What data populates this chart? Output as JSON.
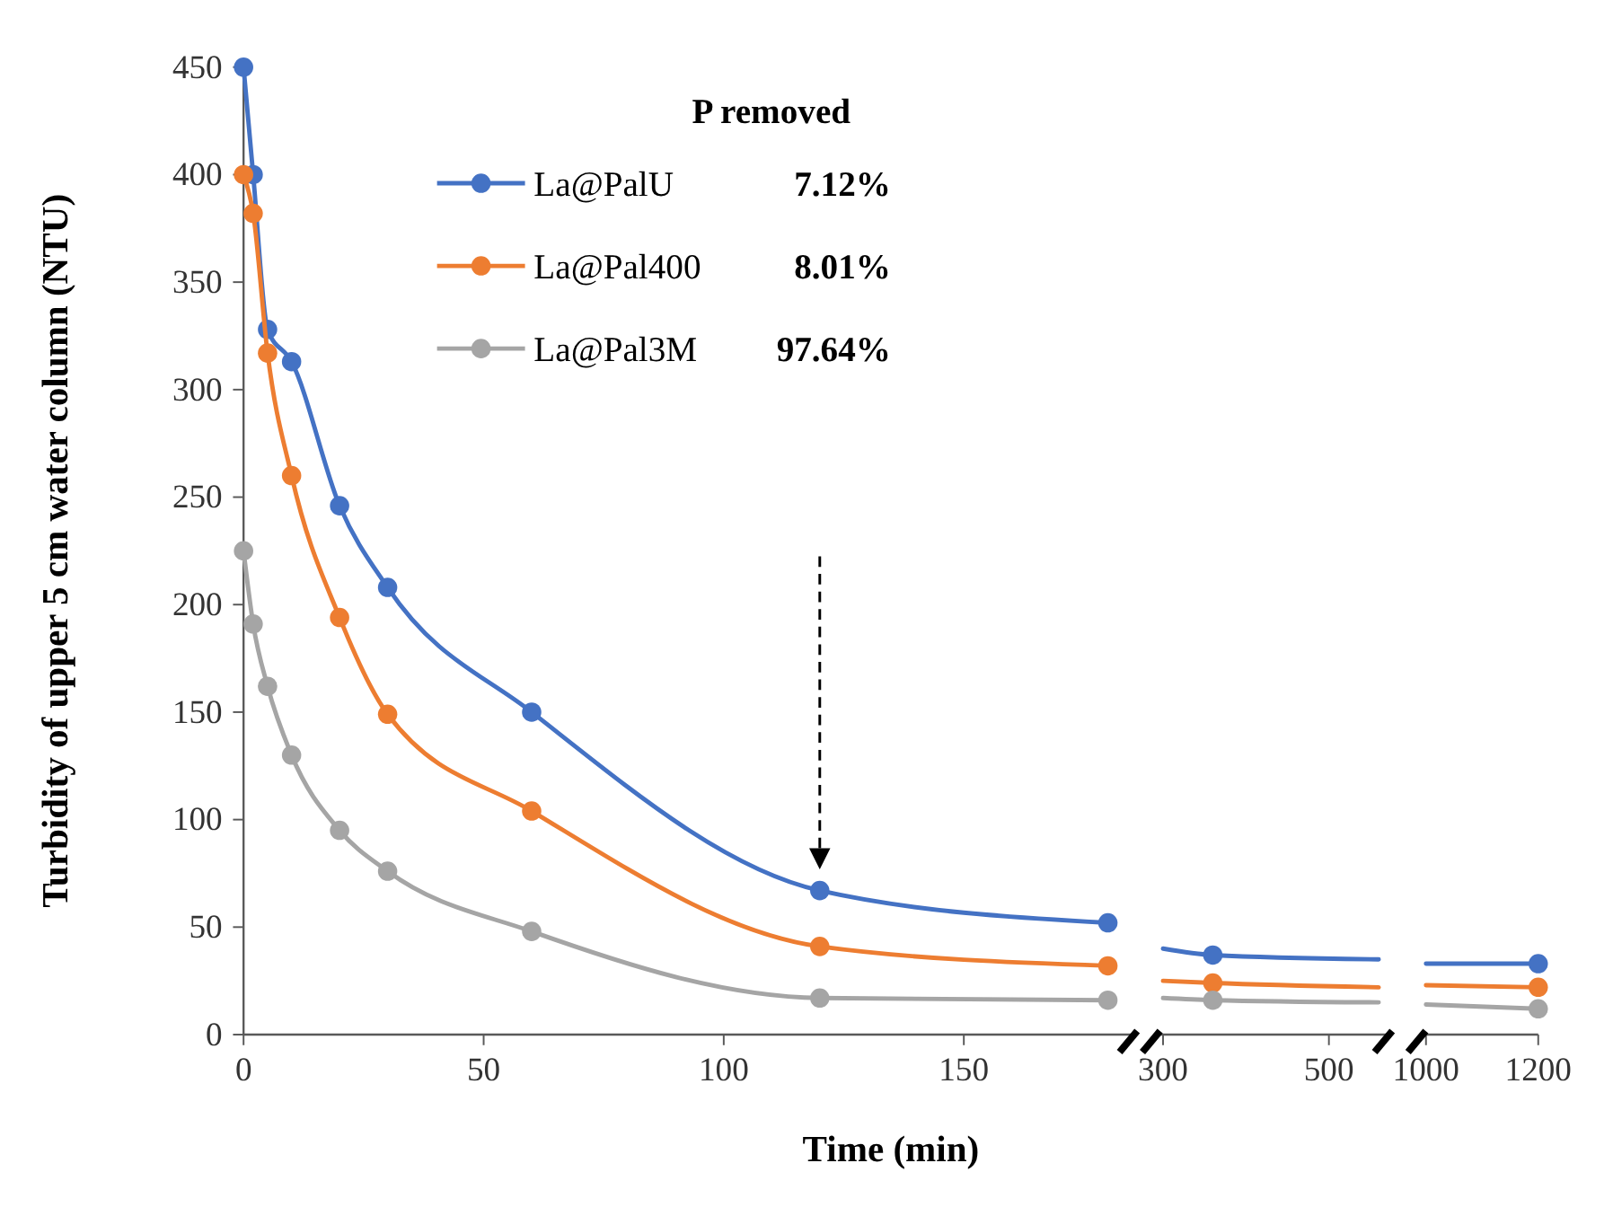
{
  "chart_data": [
    {
      "type": "line",
      "xlabel": "Time (min)",
      "ylabel": "Turbidity of upper 5 cm water column (NTU)",
      "legend": "top",
      "legend_title": "P removed",
      "annotations": [
        "7.12%",
        "8.01%",
        "97.64%"
      ],
      "marker": "circle",
      "xlim": [
        0,
        185
      ],
      "xticks": [
        0,
        50,
        100,
        150
      ],
      "ylim": [
        0,
        450
      ],
      "yticks": [
        0,
        50,
        100,
        150,
        200,
        250,
        300,
        350,
        400,
        450
      ],
      "x": [
        0,
        2,
        5,
        10,
        20,
        30,
        60,
        120,
        180
      ],
      "series": [
        {
          "name": "La@PalU",
          "color": "#4472c4",
          "values": [
            450,
            400,
            328,
            313,
            246,
            208,
            150,
            67,
            52
          ]
        },
        {
          "name": "La@Pal400",
          "color": "#ed7d31",
          "values": [
            400,
            382,
            317,
            260,
            194,
            149,
            104,
            41,
            32
          ]
        },
        {
          "name": "La@Pal3M",
          "color": "#a5a5a5",
          "values": [
            225,
            191,
            162,
            130,
            95,
            76,
            48,
            17,
            16
          ]
        }
      ]
    },
    {
      "type": "line",
      "tick_labels": "x",
      "xlim": [
        290,
        570
      ],
      "xticks": [
        300,
        500
      ],
      "ylim": [
        0,
        450
      ],
      "series": [
        {
          "marker": "none",
          "color": "#4472c4",
          "x": [
            300,
            360,
            560
          ],
          "values": [
            40,
            37,
            35
          ]
        },
        {
          "marker": "none",
          "color": "#ed7d31",
          "x": [
            300,
            360,
            560
          ],
          "values": [
            25,
            24,
            22
          ]
        },
        {
          "marker": "none",
          "color": "#a5a5a5",
          "x": [
            300,
            360,
            560
          ],
          "values": [
            17,
            16,
            15
          ]
        },
        {
          "type": "scatter",
          "marker": "circle",
          "color": "#4472c4",
          "x": [
            360
          ],
          "values": [
            37
          ]
        },
        {
          "type": "scatter",
          "marker": "circle",
          "color": "#ed7d31",
          "x": [
            360
          ],
          "values": [
            24
          ]
        },
        {
          "type": "scatter",
          "marker": "circle",
          "color": "#a5a5a5",
          "x": [
            360
          ],
          "values": [
            16
          ]
        }
      ]
    },
    {
      "type": "line",
      "tick_labels": "x",
      "xlim": [
        990,
        1200
      ],
      "xticks": [
        1000,
        1200
      ],
      "ylim": [
        0,
        450
      ],
      "series": [
        {
          "marker": "none",
          "color": "#4472c4",
          "x": [
            1000,
            1200
          ],
          "values": [
            33,
            33
          ]
        },
        {
          "marker": "none",
          "color": "#ed7d31",
          "x": [
            1000,
            1200
          ],
          "values": [
            23,
            22
          ]
        },
        {
          "marker": "none",
          "color": "#a5a5a5",
          "x": [
            1000,
            1200
          ],
          "values": [
            14,
            12
          ]
        },
        {
          "type": "scatter",
          "marker": "circle",
          "color": "#4472c4",
          "x": [
            1200
          ],
          "values": [
            33
          ]
        },
        {
          "type": "scatter",
          "marker": "circle",
          "color": "#ed7d31",
          "x": [
            1200
          ],
          "values": [
            22
          ]
        },
        {
          "type": "scatter",
          "marker": "circle",
          "color": "#a5a5a5",
          "x": [
            1200
          ],
          "values": [
            12
          ]
        }
      ]
    }
  ]
}
